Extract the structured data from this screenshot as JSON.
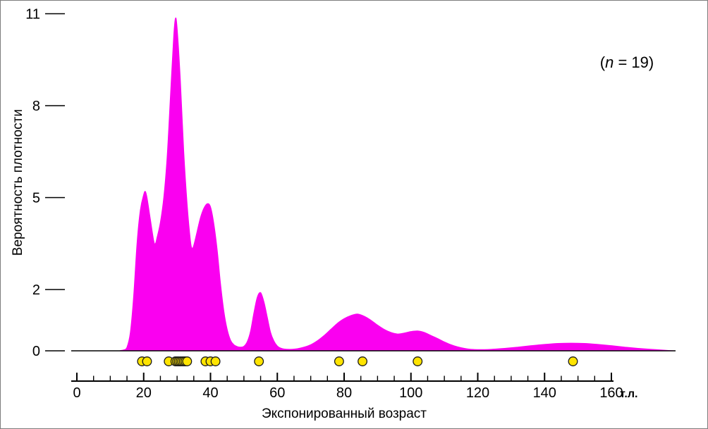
{
  "chart_data": {
    "type": "area",
    "title": "",
    "xlabel": "Экспонированный возраст",
    "ylabel": "Вероятность плотности",
    "x_unit_label": "т.л.",
    "annotation": "(n = 19)",
    "annotation_parts": {
      "open": "(",
      "n": "n",
      "rest": " = 19)"
    },
    "n_samples": 19,
    "xlim": [
      0,
      179
    ],
    "ylim": [
      0,
      11
    ],
    "x_major_ticks": [
      0,
      20,
      40,
      60,
      80,
      100,
      120,
      140,
      160
    ],
    "x_minor_tick_step": 5,
    "y_ticks": [
      0,
      2,
      5,
      8,
      11
    ],
    "grid": false,
    "legend": false,
    "colors": {
      "density_fill": "#FA00F0",
      "sample_dot_fill": "#FFE400",
      "sample_dot_stroke": "#1a1a1a",
      "axis": "#000000"
    },
    "density_curve": [
      [
        0,
        0
      ],
      [
        12,
        0
      ],
      [
        13,
        0.01
      ],
      [
        14,
        0.03
      ],
      [
        15,
        0.12
      ],
      [
        16,
        0.6
      ],
      [
        17,
        1.8
      ],
      [
        18,
        3.5
      ],
      [
        19,
        4.6
      ],
      [
        20,
        5.1
      ],
      [
        20.5,
        5.2
      ],
      [
        21,
        5.0
      ],
      [
        22,
        4.3
      ],
      [
        23,
        3.6
      ],
      [
        23.5,
        3.5
      ],
      [
        24,
        3.7
      ],
      [
        25,
        4.2
      ],
      [
        26,
        5.0
      ],
      [
        27,
        6.3
      ],
      [
        28,
        8.3
      ],
      [
        29,
        10.3
      ],
      [
        29.5,
        10.85
      ],
      [
        30,
        10.55
      ],
      [
        31,
        8.8
      ],
      [
        32,
        6.5
      ],
      [
        33,
        4.8
      ],
      [
        34,
        3.6
      ],
      [
        34.5,
        3.35
      ],
      [
        35,
        3.45
      ],
      [
        36,
        3.9
      ],
      [
        37,
        4.35
      ],
      [
        38,
        4.65
      ],
      [
        39,
        4.8
      ],
      [
        40,
        4.7
      ],
      [
        41,
        4.15
      ],
      [
        42,
        3.3
      ],
      [
        43,
        2.2
      ],
      [
        44,
        1.3
      ],
      [
        45,
        0.7
      ],
      [
        46,
        0.35
      ],
      [
        47,
        0.2
      ],
      [
        48,
        0.14
      ],
      [
        49,
        0.12
      ],
      [
        50,
        0.15
      ],
      [
        51,
        0.3
      ],
      [
        52,
        0.65
      ],
      [
        53,
        1.25
      ],
      [
        54,
        1.75
      ],
      [
        55,
        1.9
      ],
      [
        56,
        1.6
      ],
      [
        57,
        1.1
      ],
      [
        58,
        0.6
      ],
      [
        59,
        0.32
      ],
      [
        60,
        0.16
      ],
      [
        61,
        0.09
      ],
      [
        62,
        0.06
      ],
      [
        64,
        0.05
      ],
      [
        66,
        0.07
      ],
      [
        68,
        0.12
      ],
      [
        70,
        0.2
      ],
      [
        72,
        0.33
      ],
      [
        74,
        0.5
      ],
      [
        76,
        0.7
      ],
      [
        78,
        0.9
      ],
      [
        80,
        1.05
      ],
      [
        82,
        1.15
      ],
      [
        84,
        1.2
      ],
      [
        86,
        1.13
      ],
      [
        88,
        1.0
      ],
      [
        90,
        0.84
      ],
      [
        92,
        0.7
      ],
      [
        94,
        0.6
      ],
      [
        96,
        0.55
      ],
      [
        98,
        0.58
      ],
      [
        100,
        0.63
      ],
      [
        102,
        0.65
      ],
      [
        104,
        0.6
      ],
      [
        106,
        0.5
      ],
      [
        108,
        0.4
      ],
      [
        110,
        0.29
      ],
      [
        112,
        0.2
      ],
      [
        114,
        0.13
      ],
      [
        116,
        0.08
      ],
      [
        118,
        0.05
      ],
      [
        120,
        0.04
      ],
      [
        124,
        0.05
      ],
      [
        128,
        0.08
      ],
      [
        132,
        0.12
      ],
      [
        136,
        0.17
      ],
      [
        140,
        0.21
      ],
      [
        144,
        0.24
      ],
      [
        148,
        0.25
      ],
      [
        152,
        0.24
      ],
      [
        156,
        0.21
      ],
      [
        160,
        0.17
      ],
      [
        164,
        0.12
      ],
      [
        168,
        0.08
      ],
      [
        172,
        0.05
      ],
      [
        176,
        0.02
      ],
      [
        179,
        0
      ]
    ],
    "sample_ages": [
      19.5,
      21,
      27.5,
      29.5,
      30,
      30.5,
      31,
      31.5,
      32,
      32.5,
      33,
      38.5,
      40,
      41.5,
      54.5,
      78.5,
      85.5,
      102,
      148.5
    ]
  }
}
